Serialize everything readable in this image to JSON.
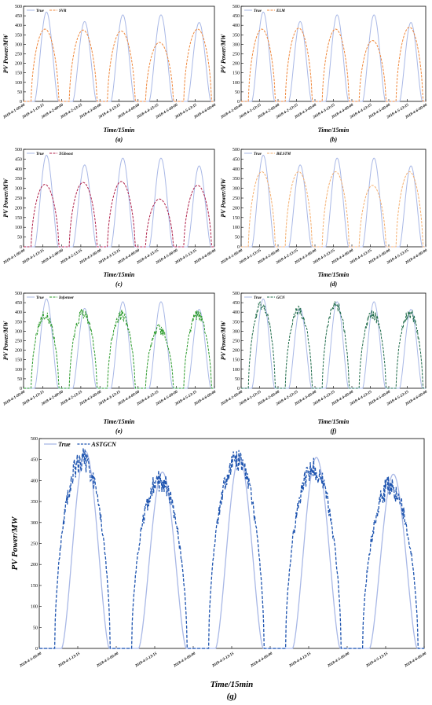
{
  "chart_data": [
    {
      "id": "a",
      "panel_label": "(a)",
      "type": "line",
      "xlabel": "Time/15min",
      "ylabel": "PV Power/MW",
      "ylim": [
        0,
        500
      ],
      "yticks": [
        0,
        50,
        100,
        150,
        200,
        250,
        300,
        350,
        400,
        450,
        500
      ],
      "xticks": [
        "2018-4-1-00:00",
        "2018-4-1-13:15",
        "2018-4-2-00:00",
        "2018-4-2-13:15",
        "2018-4-3-00:00",
        "2018-4-3-13:15",
        "2018-4-4-00:00",
        "2018-4-4-13:15",
        "2018-4-5-00:00",
        "2018-4-5-13:15",
        "2018-4-6-00:00"
      ],
      "legend_position": "top-left",
      "series": [
        {
          "name": "True",
          "style": "solid",
          "color": "#a9b8e6",
          "daily_peaks": [
            470,
            420,
            455,
            455,
            415
          ]
        },
        {
          "name": "SVR",
          "style": "dashed",
          "color": "#f0883c",
          "daily_peaks": [
            380,
            375,
            370,
            310,
            380
          ]
        }
      ]
    },
    {
      "id": "b",
      "panel_label": "(b)",
      "type": "line",
      "xlabel": "Time/15min",
      "ylabel": "PV Power/MW",
      "ylim": [
        0,
        500
      ],
      "yticks": [
        0,
        50,
        100,
        150,
        200,
        250,
        300,
        350,
        400,
        450,
        500
      ],
      "xticks": [
        "2018-4-1-00:00",
        "2018-4-1-13:15",
        "2018-4-2-00:00",
        "2018-4-2-13:15",
        "2018-4-3-00:00",
        "2018-4-3-13:15",
        "2018-4-4-00:00",
        "2018-4-4-13:15",
        "2018-4-5-00:00",
        "2018-4-5-13:15",
        "2018-4-6-00:00"
      ],
      "legend_position": "top-left",
      "series": [
        {
          "name": "True",
          "style": "solid",
          "color": "#a9b8e6",
          "daily_peaks": [
            470,
            420,
            455,
            455,
            415
          ]
        },
        {
          "name": "ELM",
          "style": "dashed",
          "color": "#f0883c",
          "daily_peaks": [
            380,
            385,
            380,
            320,
            390
          ]
        }
      ]
    },
    {
      "id": "c",
      "panel_label": "(c)",
      "type": "line",
      "xlabel": "Time/15min",
      "ylabel": "PV Power/MW",
      "ylim": [
        0,
        500
      ],
      "yticks": [
        0,
        50,
        100,
        150,
        200,
        250,
        300,
        350,
        400,
        450,
        500
      ],
      "xticks": [
        "2018-4-1-00:00",
        "2018-4-1-13:15",
        "2018-4-2-00:00",
        "2018-4-2-13:15",
        "2018-4-3-00:00",
        "2018-4-3-13:15",
        "2018-4-4-00:00",
        "2018-4-4-13:15",
        "2018-4-5-00:00",
        "2018-4-5-13:15",
        "2018-4-6-00:00"
      ],
      "legend_position": "top-left",
      "series": [
        {
          "name": "True",
          "style": "solid",
          "color": "#a9b8e6",
          "daily_peaks": [
            470,
            420,
            455,
            455,
            415
          ]
        },
        {
          "name": "XGboost",
          "style": "dashed",
          "color": "#b0204a",
          "daily_peaks": [
            320,
            330,
            335,
            245,
            315
          ]
        }
      ]
    },
    {
      "id": "d",
      "panel_label": "(d)",
      "type": "line",
      "xlabel": "Time/15min",
      "ylabel": "PV Power/MW",
      "ylim": [
        0,
        500
      ],
      "yticks": [
        0,
        50,
        100,
        150,
        200,
        250,
        300,
        350,
        400,
        450,
        500
      ],
      "xticks": [
        "2018-4-1-00:00",
        "2018-4-1-13:15",
        "2018-4-2-00:00",
        "2018-4-2-13:15",
        "2018-4-3-00:00",
        "2018-4-3-13:15",
        "2018-4-4-00:00",
        "2018-4-4-13:15",
        "2018-4-5-00:00",
        "2018-4-5-13:15",
        "2018-4-6-00:00"
      ],
      "legend_position": "top-left",
      "series": [
        {
          "name": "True",
          "style": "solid",
          "color": "#a9b8e6",
          "daily_peaks": [
            470,
            420,
            455,
            455,
            415
          ]
        },
        {
          "name": "BiLSTM",
          "style": "dashed",
          "color": "#f5b070",
          "daily_peaks": [
            385,
            385,
            385,
            315,
            385
          ]
        }
      ]
    },
    {
      "id": "e",
      "panel_label": "(e)",
      "type": "line",
      "xlabel": "Time/15min",
      "ylabel": "PV Power/MW",
      "ylim": [
        0,
        500
      ],
      "yticks": [
        0,
        50,
        100,
        150,
        200,
        250,
        300,
        350,
        400,
        450,
        500
      ],
      "xticks": [
        "2018-4-1-00:00",
        "2018-4-1-13:15",
        "2018-4-2-00:00",
        "2018-4-2-13:15",
        "2018-4-3-00:00",
        "2018-4-3-13:15",
        "2018-4-4-00:00",
        "2018-4-4-13:15",
        "2018-4-5-00:00",
        "2018-4-5-13:15",
        "2018-4-6-00:00"
      ],
      "legend_position": "top-left",
      "series": [
        {
          "name": "True",
          "style": "solid",
          "color": "#a9b8e6",
          "daily_peaks": [
            470,
            420,
            455,
            455,
            415
          ]
        },
        {
          "name": "Informer",
          "style": "dashed",
          "color": "#2a9a2a",
          "daily_peaks": [
            385,
            395,
            385,
            310,
            385
          ]
        }
      ]
    },
    {
      "id": "f",
      "panel_label": "(f)",
      "type": "line",
      "xlabel": "Time/15min",
      "ylabel": "PV Power/MW",
      "ylim": [
        0,
        500
      ],
      "yticks": [
        0,
        50,
        100,
        150,
        200,
        250,
        300,
        350,
        400,
        450,
        500
      ],
      "xticks": [
        "2018-4-1-00:00",
        "2018-4-1-13:15",
        "2018-4-2-00:00",
        "2018-4-2-13:15",
        "2018-4-3-00:00",
        "2018-4-3-13:15",
        "2018-4-4-00:00",
        "2018-4-4-13:15",
        "2018-4-5-00:00",
        "2018-4-5-13:15",
        "2018-4-6-00:00"
      ],
      "legend_position": "top-left",
      "series": [
        {
          "name": "True",
          "style": "solid",
          "color": "#a9b8e6",
          "daily_peaks": [
            470,
            420,
            455,
            455,
            415
          ]
        },
        {
          "name": "GCN",
          "style": "dashed",
          "color": "#1f6b4a",
          "daily_peaks": [
            440,
            410,
            440,
            390,
            395
          ]
        }
      ]
    },
    {
      "id": "g",
      "panel_label": "(g)",
      "type": "line",
      "xlabel": "Time/15min",
      "ylabel": "PV Power/MW",
      "ylim": [
        0,
        500
      ],
      "yticks": [
        0,
        50,
        100,
        150,
        200,
        250,
        300,
        350,
        400,
        450,
        500
      ],
      "xticks": [
        "2018-4-1-00:00",
        "2018-4-1-13:15",
        "2018-4-2-00:00",
        "2018-4-2-13:15",
        "2018-4-3-00:00",
        "2018-4-3-13:15",
        "2018-4-4-00:00",
        "2018-4-4-13:15",
        "2018-4-5-00:00",
        "2018-4-5-13:15",
        "2018-4-6-00:00"
      ],
      "legend_position": "top-left",
      "series": [
        {
          "name": "True",
          "style": "solid",
          "color": "#a9b8e6",
          "daily_peaks": [
            470,
            420,
            455,
            455,
            415
          ]
        },
        {
          "name": "ASTGCN",
          "style": "dashed",
          "color": "#1f55b0",
          "daily_peaks": [
            450,
            400,
            450,
            430,
            385
          ]
        }
      ]
    }
  ]
}
